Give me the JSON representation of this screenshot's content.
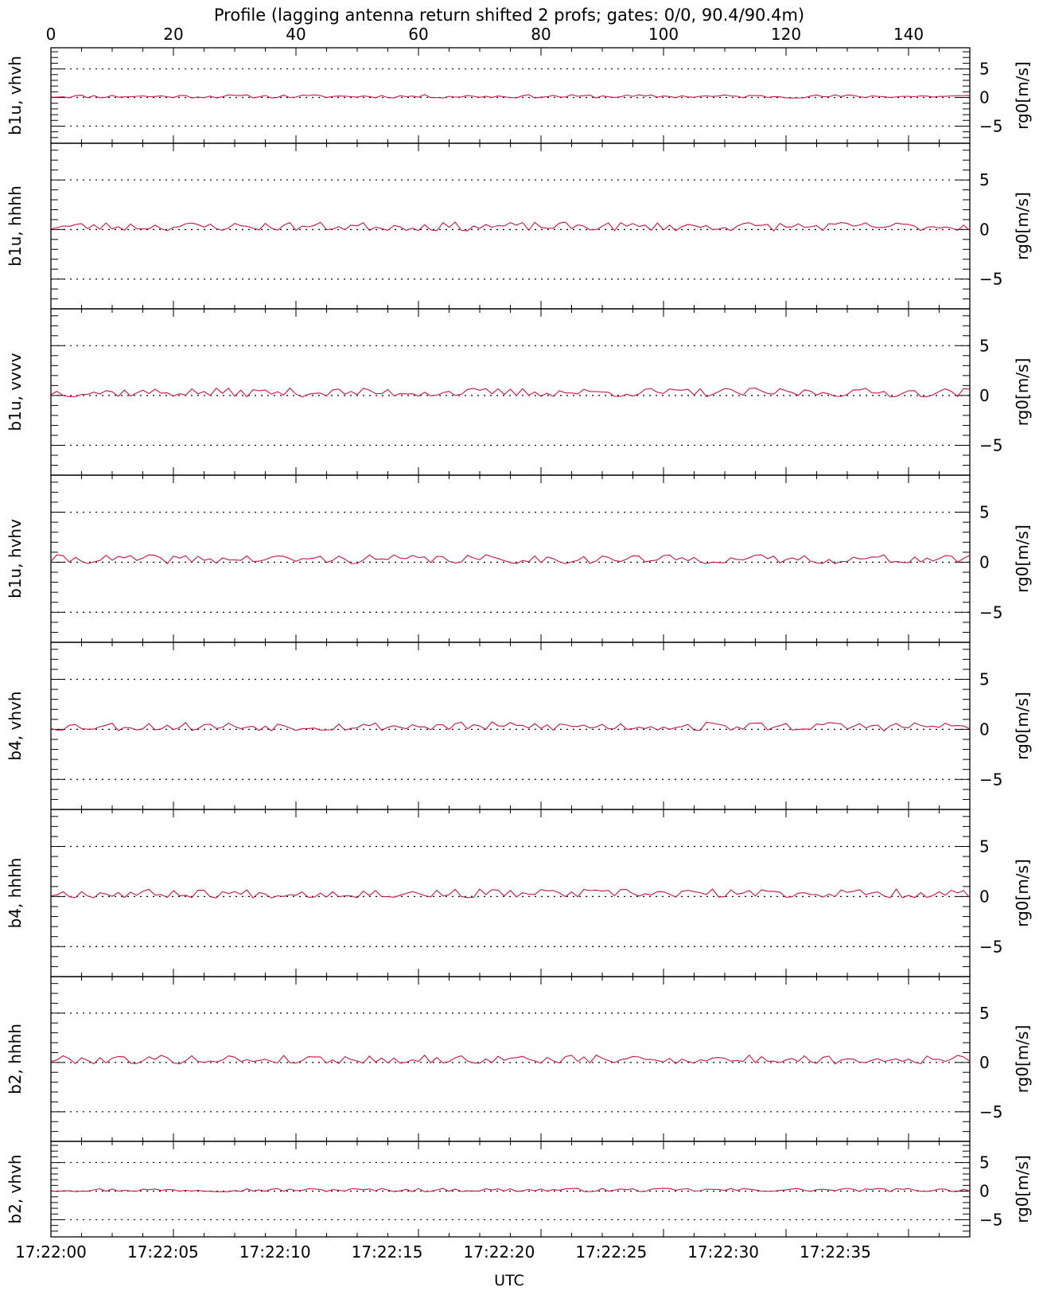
{
  "chart_data": {
    "type": "line",
    "title": "Profile (lagging antenna return shifted 2 profs; gates: 0/0, 90.4/90.4m)",
    "xlabel": "UTC",
    "top_axis": {
      "range": [
        0,
        150
      ],
      "ticks": [
        "0",
        "20",
        "40",
        "60",
        "80",
        "100",
        "120",
        "140"
      ]
    },
    "bottom_axis": {
      "ticks": [
        "17:22:00",
        "17:22:05",
        "17:22:10",
        "17:22:15",
        "17:22:20",
        "17:22:25",
        "17:22:30",
        "17:22:35"
      ]
    },
    "right_ylabel": "rg0[m/s]",
    "reference_lines": [
      5,
      0,
      -5
    ],
    "line_color": "#c8143c",
    "panels": [
      {
        "label": "b1u, vhvh",
        "ylim": [
          -8,
          8.7
        ],
        "ticks": [
          "5",
          "0",
          "-5"
        ],
        "level": 0.2,
        "amplitude": 0.3,
        "seed": 11
      },
      {
        "label": "b1u, hhhh",
        "ylim": [
          -8,
          8.7
        ],
        "ticks": [
          "5",
          "0",
          "-5"
        ],
        "level": 0.3,
        "amplitude": 0.45,
        "seed": 23
      },
      {
        "label": "b1u, vvvv",
        "ylim": [
          -8,
          8.7
        ],
        "ticks": [
          "5",
          "0",
          "-5"
        ],
        "level": 0.3,
        "amplitude": 0.45,
        "seed": 37
      },
      {
        "label": "b1u, hvhv",
        "ylim": [
          -8,
          8.7
        ],
        "ticks": [
          "5",
          "0",
          "-5"
        ],
        "level": 0.3,
        "amplitude": 0.45,
        "seed": 41
      },
      {
        "label": "b4, vhvh",
        "ylim": [
          -8,
          8.7
        ],
        "ticks": [
          "5",
          "0",
          "-5"
        ],
        "level": 0.3,
        "amplitude": 0.45,
        "seed": 53
      },
      {
        "label": "b4, hhhh",
        "ylim": [
          -8,
          8.7
        ],
        "ticks": [
          "5",
          "0",
          "-5"
        ],
        "level": 0.3,
        "amplitude": 0.45,
        "seed": 67
      },
      {
        "label": "b2, hhhh",
        "ylim": [
          -8,
          8.7
        ],
        "ticks": [
          "5",
          "0",
          "-5"
        ],
        "level": 0.3,
        "amplitude": 0.45,
        "seed": 79
      },
      {
        "label": "b2, vhvh",
        "ylim": [
          -8,
          8.7
        ],
        "ticks": [
          "5",
          "0",
          "-5"
        ],
        "level": 0.2,
        "amplitude": 0.3,
        "seed": 97
      }
    ]
  }
}
